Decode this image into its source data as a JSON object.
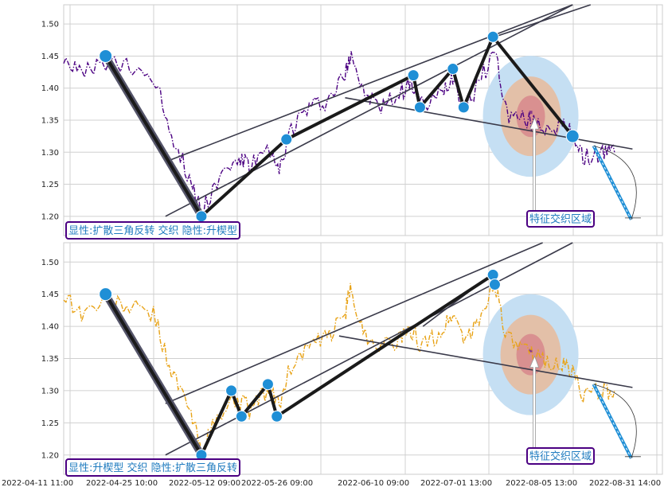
{
  "chart_data": [
    {
      "type": "line",
      "panel": "top",
      "series": [
        {
          "color": "#4b0082",
          "style": "dash-dot"
        }
      ],
      "ylim": [
        1.17,
        1.53
      ],
      "y_ticks": [
        "1.20",
        "1.25",
        "1.30",
        "1.35",
        "1.40",
        "1.45",
        "1.50"
      ],
      "grid": true,
      "pattern_points": [
        {
          "x": 0.07,
          "y": 1.45
        },
        {
          "x": 0.23,
          "y": 1.2
        },
        {
          "x": 0.372,
          "y": 1.32
        },
        {
          "x": 0.584,
          "y": 1.42
        },
        {
          "x": 0.595,
          "y": 1.37
        },
        {
          "x": 0.65,
          "y": 1.43
        },
        {
          "x": 0.668,
          "y": 1.37
        },
        {
          "x": 0.717,
          "y": 1.48
        },
        {
          "x": 0.85,
          "y": 1.325
        }
      ],
      "label_box": "显性:扩散三角反转 交织 隐性:升楔型",
      "zone_label": "特征交织区域",
      "zone_center": {
        "x": 0.78,
        "y": 1.356
      }
    },
    {
      "type": "line",
      "panel": "bottom",
      "series": [
        {
          "color": "#e8a317",
          "style": "dash-dot"
        }
      ],
      "ylim": [
        1.17,
        1.53
      ],
      "y_ticks": [
        "1.20",
        "1.25",
        "1.30",
        "1.35",
        "1.40",
        "1.45",
        "1.50"
      ],
      "grid": true,
      "pattern_points": [
        {
          "x": 0.07,
          "y": 1.45
        },
        {
          "x": 0.23,
          "y": 1.2
        },
        {
          "x": 0.28,
          "y": 1.3
        },
        {
          "x": 0.297,
          "y": 1.26
        },
        {
          "x": 0.341,
          "y": 1.31
        },
        {
          "x": 0.356,
          "y": 1.26
        },
        {
          "x": 0.717,
          "y": 1.48
        },
        {
          "x": 0.72,
          "y": 1.465
        }
      ],
      "label_box": "显性:升楔型 交织 隐性:扩散三角反转",
      "zone_label": "特征交织区域",
      "zone_center": {
        "x": 0.78,
        "y": 1.356
      }
    }
  ],
  "x_ticks": [
    "2022-04-11 11:00",
    "2022-04-25 10:00",
    "2022-05-12 09:00",
    "2022-05-26 09:00",
    "2022-06-10 09:00",
    "2022-07-01 13:00",
    "2022-08-05 13:00",
    "2022-08-31 14:00"
  ]
}
